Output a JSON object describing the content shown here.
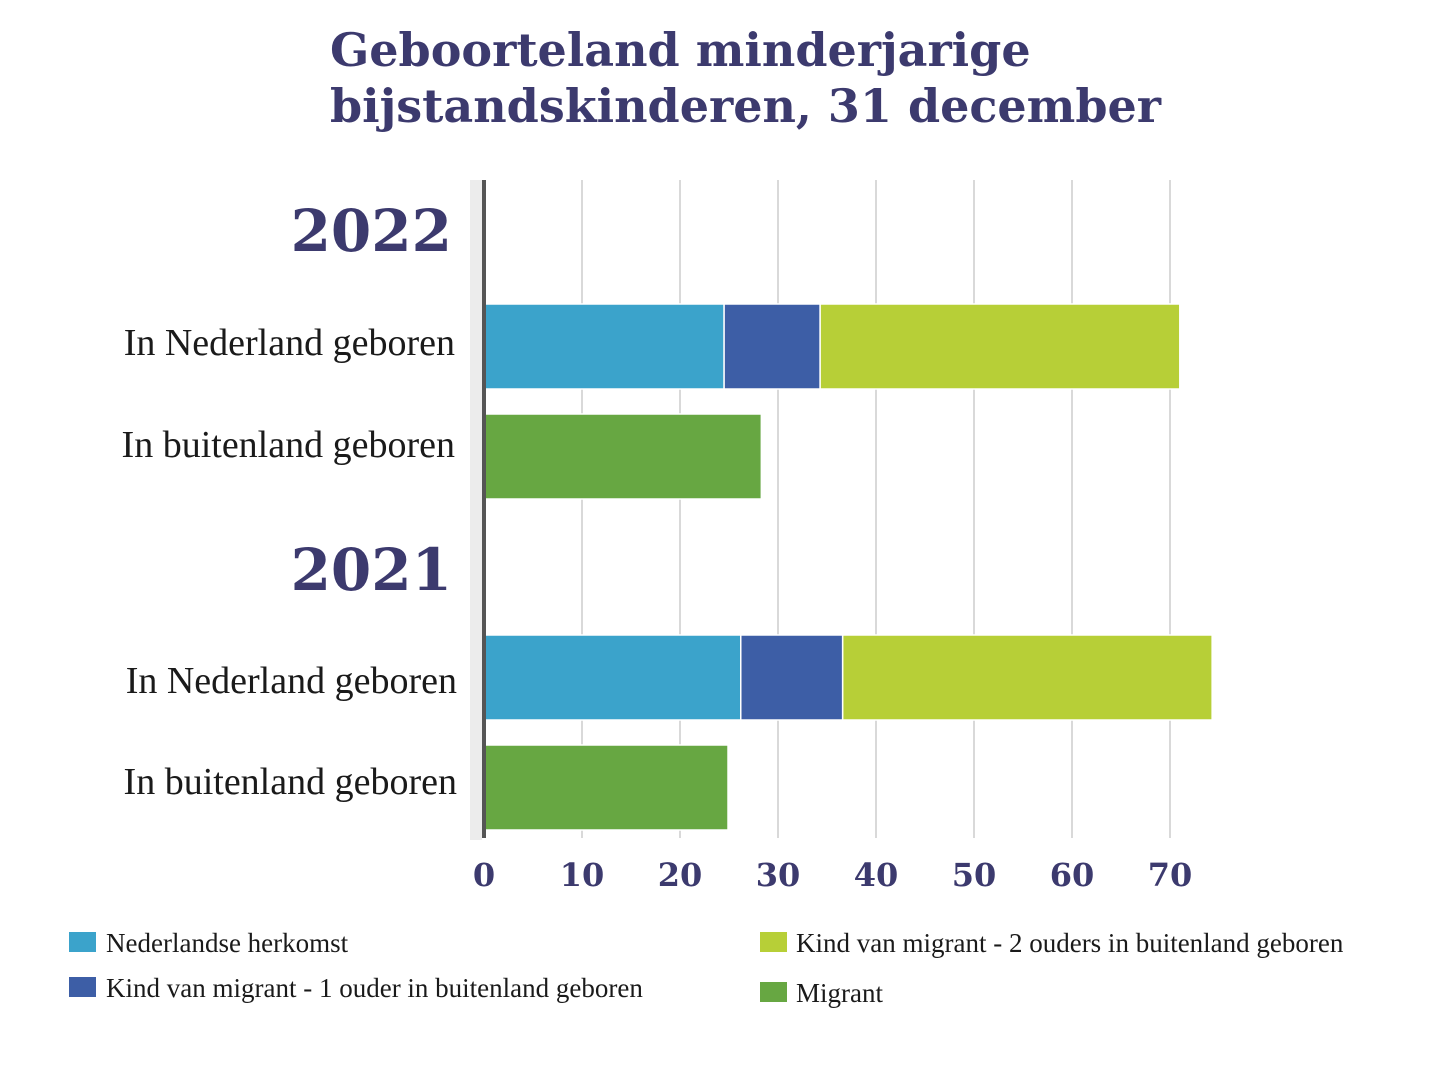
{
  "chart_data": {
    "type": "bar",
    "orientation": "horizontal",
    "stacked": true,
    "title_lines": [
      "Geboorteland minderjarige",
      "bijstandskinderen, 31 december"
    ],
    "groups": [
      {
        "label": "2022",
        "rows": [
          {
            "label": "In Nederland geboren",
            "values": [
              24.5,
              9.8,
              36.7,
              0
            ]
          },
          {
            "label": "In buitenland geboren",
            "values": [
              0,
              0,
              0,
              28.3
            ]
          }
        ]
      },
      {
        "label": "2021",
        "rows": [
          {
            "label": "In Nederland geboren",
            "values": [
              26.2,
              10.4,
              37.7,
              0
            ]
          },
          {
            "label": "In buitenland geboren",
            "values": [
              0,
              0,
              0,
              24.9
            ]
          }
        ]
      }
    ],
    "series": [
      {
        "name": "Nederlandse herkomst",
        "color": "#3ba3cb"
      },
      {
        "name": "Kind van migrant - 1 ouder in buitenland geboren",
        "color": "#3d5ea6"
      },
      {
        "name": "Kind van migrant - 2 ouders in buitenland geboren",
        "color": "#b7cf37"
      },
      {
        "name": "Migrant",
        "color": "#67a742"
      }
    ],
    "x_ticks": [
      "0",
      "10",
      "20",
      "30",
      "40",
      "50",
      "60",
      "70"
    ],
    "xlim": [
      0,
      75
    ],
    "grid": true,
    "legend_position": "bottom"
  }
}
